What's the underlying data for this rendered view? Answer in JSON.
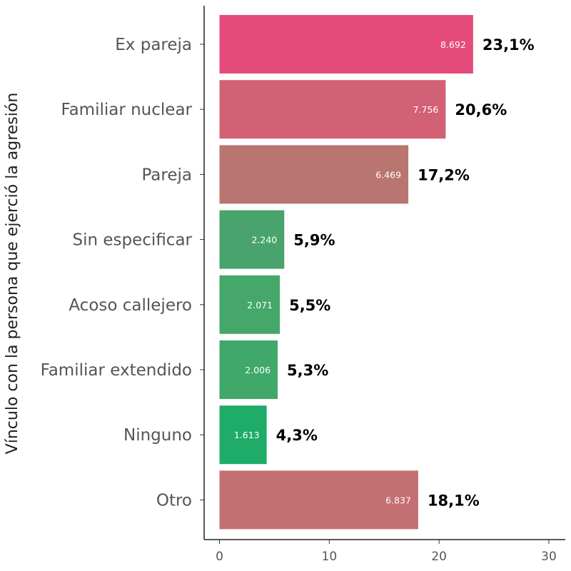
{
  "chart_data": {
    "type": "bar",
    "orientation": "horizontal",
    "title": "",
    "xlabel": "",
    "ylabel": "Vínculo con la persona que ejerció la agresión",
    "xlim": [
      0,
      30
    ],
    "xticks": [
      "0",
      "10",
      "20",
      "30"
    ],
    "grid": false,
    "categories": [
      "Ex pareja",
      "Familiar nuclear",
      "Pareja",
      "Sin especificar",
      "Acoso callejero",
      "Familiar extendido",
      "Ninguno",
      "Otro"
    ],
    "values": [
      23.1,
      20.6,
      17.2,
      5.9,
      5.5,
      5.3,
      4.3,
      18.1
    ],
    "pct_labels": [
      "23,1%",
      "20,6%",
      "17,2%",
      "5,9%",
      "5,5%",
      "5,3%",
      "4,3%",
      "18,1%"
    ],
    "count_labels": [
      "8.692",
      "7.756",
      "6.469",
      "2.240",
      "2.071",
      "2.006",
      "1.613",
      "6.837"
    ],
    "colors": [
      "#e54b7b",
      "#d36175",
      "#b97570",
      "#48a46c",
      "#45a86a",
      "#3fa86a",
      "#1fac69",
      "#c46f72"
    ]
  }
}
